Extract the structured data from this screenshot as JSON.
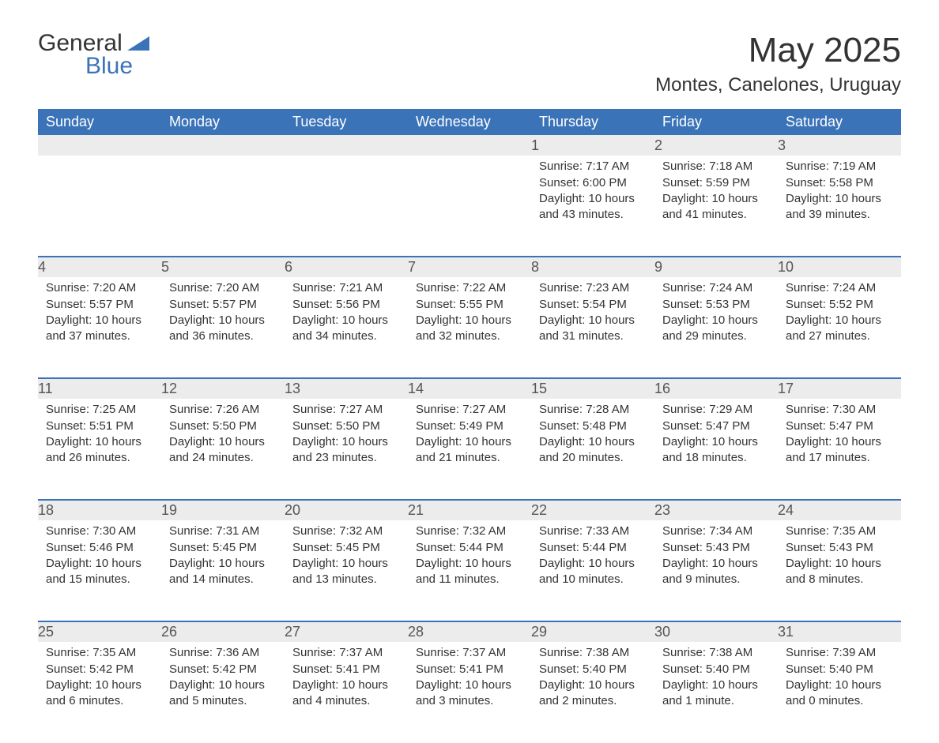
{
  "logo": {
    "text1": "General",
    "text2": "Blue"
  },
  "title": "May 2025",
  "subtitle": "Montes, Canelones, Uruguay",
  "colors": {
    "header_bg": "#3b73b9",
    "header_text": "#ffffff",
    "daynum_bg": "#ececec",
    "daynum_border": "#3b73b9",
    "body_text": "#333333",
    "page_bg": "#ffffff"
  },
  "fonts": {
    "family": "Arial",
    "title_pt": 44,
    "subtitle_pt": 24,
    "header_pt": 18,
    "daynum_pt": 18,
    "body_pt": 15
  },
  "weekdays": [
    "Sunday",
    "Monday",
    "Tuesday",
    "Wednesday",
    "Thursday",
    "Friday",
    "Saturday"
  ],
  "weeks": [
    [
      null,
      null,
      null,
      null,
      {
        "n": "1",
        "sunrise": "7:17 AM",
        "sunset": "6:00 PM",
        "daylight": "10 hours and 43 minutes."
      },
      {
        "n": "2",
        "sunrise": "7:18 AM",
        "sunset": "5:59 PM",
        "daylight": "10 hours and 41 minutes."
      },
      {
        "n": "3",
        "sunrise": "7:19 AM",
        "sunset": "5:58 PM",
        "daylight": "10 hours and 39 minutes."
      }
    ],
    [
      {
        "n": "4",
        "sunrise": "7:20 AM",
        "sunset": "5:57 PM",
        "daylight": "10 hours and 37 minutes."
      },
      {
        "n": "5",
        "sunrise": "7:20 AM",
        "sunset": "5:57 PM",
        "daylight": "10 hours and 36 minutes."
      },
      {
        "n": "6",
        "sunrise": "7:21 AM",
        "sunset": "5:56 PM",
        "daylight": "10 hours and 34 minutes."
      },
      {
        "n": "7",
        "sunrise": "7:22 AM",
        "sunset": "5:55 PM",
        "daylight": "10 hours and 32 minutes."
      },
      {
        "n": "8",
        "sunrise": "7:23 AM",
        "sunset": "5:54 PM",
        "daylight": "10 hours and 31 minutes."
      },
      {
        "n": "9",
        "sunrise": "7:24 AM",
        "sunset": "5:53 PM",
        "daylight": "10 hours and 29 minutes."
      },
      {
        "n": "10",
        "sunrise": "7:24 AM",
        "sunset": "5:52 PM",
        "daylight": "10 hours and 27 minutes."
      }
    ],
    [
      {
        "n": "11",
        "sunrise": "7:25 AM",
        "sunset": "5:51 PM",
        "daylight": "10 hours and 26 minutes."
      },
      {
        "n": "12",
        "sunrise": "7:26 AM",
        "sunset": "5:50 PM",
        "daylight": "10 hours and 24 minutes."
      },
      {
        "n": "13",
        "sunrise": "7:27 AM",
        "sunset": "5:50 PM",
        "daylight": "10 hours and 23 minutes."
      },
      {
        "n": "14",
        "sunrise": "7:27 AM",
        "sunset": "5:49 PM",
        "daylight": "10 hours and 21 minutes."
      },
      {
        "n": "15",
        "sunrise": "7:28 AM",
        "sunset": "5:48 PM",
        "daylight": "10 hours and 20 minutes."
      },
      {
        "n": "16",
        "sunrise": "7:29 AM",
        "sunset": "5:47 PM",
        "daylight": "10 hours and 18 minutes."
      },
      {
        "n": "17",
        "sunrise": "7:30 AM",
        "sunset": "5:47 PM",
        "daylight": "10 hours and 17 minutes."
      }
    ],
    [
      {
        "n": "18",
        "sunrise": "7:30 AM",
        "sunset": "5:46 PM",
        "daylight": "10 hours and 15 minutes."
      },
      {
        "n": "19",
        "sunrise": "7:31 AM",
        "sunset": "5:45 PM",
        "daylight": "10 hours and 14 minutes."
      },
      {
        "n": "20",
        "sunrise": "7:32 AM",
        "sunset": "5:45 PM",
        "daylight": "10 hours and 13 minutes."
      },
      {
        "n": "21",
        "sunrise": "7:32 AM",
        "sunset": "5:44 PM",
        "daylight": "10 hours and 11 minutes."
      },
      {
        "n": "22",
        "sunrise": "7:33 AM",
        "sunset": "5:44 PM",
        "daylight": "10 hours and 10 minutes."
      },
      {
        "n": "23",
        "sunrise": "7:34 AM",
        "sunset": "5:43 PM",
        "daylight": "10 hours and 9 minutes."
      },
      {
        "n": "24",
        "sunrise": "7:35 AM",
        "sunset": "5:43 PM",
        "daylight": "10 hours and 8 minutes."
      }
    ],
    [
      {
        "n": "25",
        "sunrise": "7:35 AM",
        "sunset": "5:42 PM",
        "daylight": "10 hours and 6 minutes."
      },
      {
        "n": "26",
        "sunrise": "7:36 AM",
        "sunset": "5:42 PM",
        "daylight": "10 hours and 5 minutes."
      },
      {
        "n": "27",
        "sunrise": "7:37 AM",
        "sunset": "5:41 PM",
        "daylight": "10 hours and 4 minutes."
      },
      {
        "n": "28",
        "sunrise": "7:37 AM",
        "sunset": "5:41 PM",
        "daylight": "10 hours and 3 minutes."
      },
      {
        "n": "29",
        "sunrise": "7:38 AM",
        "sunset": "5:40 PM",
        "daylight": "10 hours and 2 minutes."
      },
      {
        "n": "30",
        "sunrise": "7:38 AM",
        "sunset": "5:40 PM",
        "daylight": "10 hours and 1 minute."
      },
      {
        "n": "31",
        "sunrise": "7:39 AM",
        "sunset": "5:40 PM",
        "daylight": "10 hours and 0 minutes."
      }
    ]
  ],
  "labels": {
    "sunrise": "Sunrise: ",
    "sunset": "Sunset: ",
    "daylight": "Daylight: "
  }
}
